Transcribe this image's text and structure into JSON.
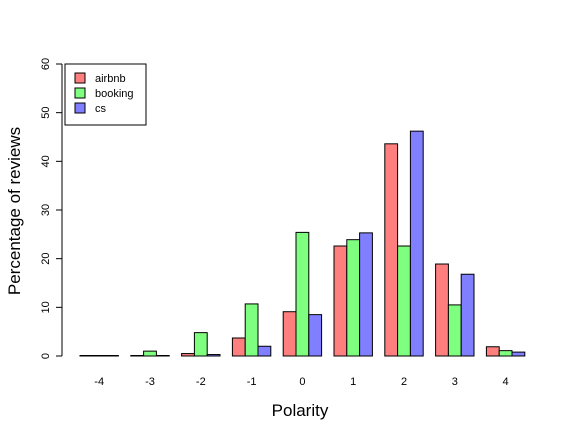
{
  "chart_data": {
    "type": "bar",
    "xlabel": "Polarity",
    "ylabel": "Percentage of reviews",
    "ylim": [
      0,
      60
    ],
    "yticks": [
      0,
      10,
      20,
      30,
      40,
      50,
      60
    ],
    "categories": [
      "-4",
      "-3",
      "-2",
      "-1",
      "0",
      "1",
      "2",
      "3",
      "4"
    ],
    "series": [
      {
        "name": "airbnb",
        "color": "#FF7F7F",
        "values": [
          0.1,
          0.1,
          0.5,
          3.7,
          9.1,
          22.6,
          43.6,
          18.9,
          1.9
        ]
      },
      {
        "name": "booking",
        "color": "#7FFF7F",
        "values": [
          0.1,
          1.0,
          4.8,
          10.7,
          25.4,
          23.9,
          22.6,
          10.5,
          1.1
        ]
      },
      {
        "name": "cs",
        "color": "#7F7FFF",
        "values": [
          0.1,
          0.1,
          0.3,
          2.0,
          8.5,
          25.3,
          46.2,
          16.8,
          0.8
        ]
      }
    ],
    "legend_position": "top-left",
    "grid": false
  }
}
